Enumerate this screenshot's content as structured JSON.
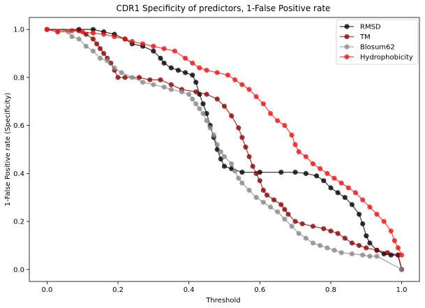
{
  "chart_data": {
    "type": "line",
    "title": "CDR1 Specificity of predictors, 1-False Positive rate",
    "xlabel": "Threshold",
    "ylabel": "1-False Positive rate (Specificity)",
    "xlim": [
      -0.05,
      1.05
    ],
    "ylim": [
      -0.05,
      1.05
    ],
    "xticks": [
      0.0,
      0.2,
      0.4,
      0.6,
      0.8,
      1.0
    ],
    "xtick_labels": [
      "0.0",
      "0.2",
      "0.4",
      "0.6",
      "0.8",
      "1.0"
    ],
    "yticks": [
      0.0,
      0.2,
      0.4,
      0.6,
      0.8,
      1.0
    ],
    "ytick_labels": [
      "0.0",
      "0.2",
      "0.4",
      "0.6",
      "0.8",
      "1.0"
    ],
    "grid": false,
    "legend_position": "top-right",
    "series": [
      {
        "name": "RMSD",
        "color": "#000000",
        "points": [
          [
            0.0,
            1.0
          ],
          [
            0.09,
            1.0
          ],
          [
            0.13,
            1.0
          ],
          [
            0.16,
            0.99
          ],
          [
            0.19,
            0.98
          ],
          [
            0.22,
            0.96
          ],
          [
            0.24,
            0.94
          ],
          [
            0.27,
            0.93
          ],
          [
            0.3,
            0.91
          ],
          [
            0.32,
            0.88
          ],
          [
            0.33,
            0.86
          ],
          [
            0.35,
            0.84
          ],
          [
            0.37,
            0.83
          ],
          [
            0.39,
            0.82
          ],
          [
            0.41,
            0.81
          ],
          [
            0.42,
            0.78
          ],
          [
            0.43,
            0.73
          ],
          [
            0.44,
            0.69
          ],
          [
            0.45,
            0.65
          ],
          [
            0.46,
            0.6
          ],
          [
            0.47,
            0.55
          ],
          [
            0.48,
            0.5
          ],
          [
            0.49,
            0.46
          ],
          [
            0.5,
            0.43
          ],
          [
            0.52,
            0.42
          ],
          [
            0.55,
            0.405
          ],
          [
            0.6,
            0.405
          ],
          [
            0.66,
            0.405
          ],
          [
            0.7,
            0.405
          ],
          [
            0.73,
            0.4
          ],
          [
            0.76,
            0.39
          ],
          [
            0.78,
            0.37
          ],
          [
            0.8,
            0.34
          ],
          [
            0.82,
            0.32
          ],
          [
            0.84,
            0.3
          ],
          [
            0.86,
            0.27
          ],
          [
            0.88,
            0.23
          ],
          [
            0.89,
            0.19
          ],
          [
            0.9,
            0.14
          ],
          [
            0.91,
            0.11
          ],
          [
            0.93,
            0.08
          ],
          [
            0.95,
            0.065
          ],
          [
            0.97,
            0.06
          ],
          [
            0.99,
            0.06
          ],
          [
            1.0,
            0.0
          ]
        ]
      },
      {
        "name": "TM",
        "color": "#8b0000",
        "points": [
          [
            0.0,
            1.0
          ],
          [
            0.09,
            0.995
          ],
          [
            0.11,
            0.98
          ],
          [
            0.13,
            0.96
          ],
          [
            0.14,
            0.94
          ],
          [
            0.15,
            0.92
          ],
          [
            0.16,
            0.9
          ],
          [
            0.17,
            0.88
          ],
          [
            0.18,
            0.86
          ],
          [
            0.19,
            0.83
          ],
          [
            0.2,
            0.8
          ],
          [
            0.22,
            0.8
          ],
          [
            0.26,
            0.8
          ],
          [
            0.29,
            0.79
          ],
          [
            0.32,
            0.79
          ],
          [
            0.35,
            0.77
          ],
          [
            0.38,
            0.75
          ],
          [
            0.42,
            0.74
          ],
          [
            0.45,
            0.73
          ],
          [
            0.48,
            0.71
          ],
          [
            0.5,
            0.68
          ],
          [
            0.52,
            0.64
          ],
          [
            0.54,
            0.59
          ],
          [
            0.55,
            0.55
          ],
          [
            0.56,
            0.51
          ],
          [
            0.57,
            0.47
          ],
          [
            0.58,
            0.43
          ],
          [
            0.59,
            0.4
          ],
          [
            0.6,
            0.37
          ],
          [
            0.61,
            0.33
          ],
          [
            0.62,
            0.31
          ],
          [
            0.64,
            0.29
          ],
          [
            0.66,
            0.27
          ],
          [
            0.67,
            0.25
          ],
          [
            0.68,
            0.23
          ],
          [
            0.7,
            0.2
          ],
          [
            0.72,
            0.19
          ],
          [
            0.75,
            0.18
          ],
          [
            0.78,
            0.17
          ],
          [
            0.8,
            0.16
          ],
          [
            0.82,
            0.15
          ],
          [
            0.84,
            0.13
          ],
          [
            0.86,
            0.11
          ],
          [
            0.88,
            0.1
          ],
          [
            0.9,
            0.09
          ],
          [
            0.93,
            0.08
          ],
          [
            0.96,
            0.07
          ],
          [
            0.99,
            0.06
          ],
          [
            1.0,
            0.0
          ]
        ]
      },
      {
        "name": "Blosum62",
        "color": "#888888",
        "points": [
          [
            0.0,
            1.0
          ],
          [
            0.03,
            0.99
          ],
          [
            0.06,
            0.99
          ],
          [
            0.07,
            0.97
          ],
          [
            0.09,
            0.96
          ],
          [
            0.11,
            0.93
          ],
          [
            0.13,
            0.91
          ],
          [
            0.15,
            0.88
          ],
          [
            0.17,
            0.87
          ],
          [
            0.19,
            0.84
          ],
          [
            0.21,
            0.82
          ],
          [
            0.24,
            0.8
          ],
          [
            0.27,
            0.78
          ],
          [
            0.3,
            0.77
          ],
          [
            0.33,
            0.76
          ],
          [
            0.35,
            0.75
          ],
          [
            0.38,
            0.74
          ],
          [
            0.4,
            0.73
          ],
          [
            0.41,
            0.71
          ],
          [
            0.42,
            0.69
          ],
          [
            0.43,
            0.67
          ],
          [
            0.44,
            0.65
          ],
          [
            0.45,
            0.62
          ],
          [
            0.46,
            0.59
          ],
          [
            0.47,
            0.56
          ],
          [
            0.48,
            0.52
          ],
          [
            0.49,
            0.49
          ],
          [
            0.5,
            0.47
          ],
          [
            0.52,
            0.44
          ],
          [
            0.53,
            0.41
          ],
          [
            0.54,
            0.38
          ],
          [
            0.55,
            0.36
          ],
          [
            0.57,
            0.33
          ],
          [
            0.59,
            0.3
          ],
          [
            0.61,
            0.28
          ],
          [
            0.63,
            0.26
          ],
          [
            0.65,
            0.24
          ],
          [
            0.67,
            0.21
          ],
          [
            0.69,
            0.18
          ],
          [
            0.71,
            0.15
          ],
          [
            0.73,
            0.13
          ],
          [
            0.75,
            0.11
          ],
          [
            0.77,
            0.1
          ],
          [
            0.79,
            0.09
          ],
          [
            0.81,
            0.08
          ],
          [
            0.83,
            0.07
          ],
          [
            0.86,
            0.065
          ],
          [
            0.89,
            0.06
          ],
          [
            0.91,
            0.055
          ],
          [
            0.93,
            0.055
          ],
          [
            1.0,
            0.0
          ]
        ]
      },
      {
        "name": "Hydrophobicity",
        "color": "#ee1111",
        "points": [
          [
            0.0,
            1.0
          ],
          [
            0.03,
            0.99
          ],
          [
            0.07,
            0.995
          ],
          [
            0.1,
            0.99
          ],
          [
            0.13,
            0.985
          ],
          [
            0.16,
            0.98
          ],
          [
            0.19,
            0.97
          ],
          [
            0.22,
            0.96
          ],
          [
            0.24,
            0.95
          ],
          [
            0.27,
            0.94
          ],
          [
            0.3,
            0.93
          ],
          [
            0.33,
            0.92
          ],
          [
            0.36,
            0.91
          ],
          [
            0.39,
            0.88
          ],
          [
            0.41,
            0.86
          ],
          [
            0.43,
            0.84
          ],
          [
            0.45,
            0.83
          ],
          [
            0.48,
            0.82
          ],
          [
            0.51,
            0.81
          ],
          [
            0.53,
            0.79
          ],
          [
            0.55,
            0.77
          ],
          [
            0.57,
            0.75
          ],
          [
            0.59,
            0.72
          ],
          [
            0.61,
            0.69
          ],
          [
            0.63,
            0.65
          ],
          [
            0.65,
            0.62
          ],
          [
            0.67,
            0.6
          ],
          [
            0.69,
            0.56
          ],
          [
            0.7,
            0.52
          ],
          [
            0.71,
            0.49
          ],
          [
            0.73,
            0.47
          ],
          [
            0.75,
            0.44
          ],
          [
            0.77,
            0.42
          ],
          [
            0.79,
            0.4
          ],
          [
            0.81,
            0.38
          ],
          [
            0.83,
            0.36
          ],
          [
            0.85,
            0.34
          ],
          [
            0.87,
            0.32
          ],
          [
            0.89,
            0.29
          ],
          [
            0.91,
            0.26
          ],
          [
            0.93,
            0.23
          ],
          [
            0.95,
            0.2
          ],
          [
            0.97,
            0.16
          ],
          [
            0.98,
            0.12
          ],
          [
            0.99,
            0.09
          ],
          [
            1.0,
            0.06
          ]
        ]
      }
    ]
  }
}
